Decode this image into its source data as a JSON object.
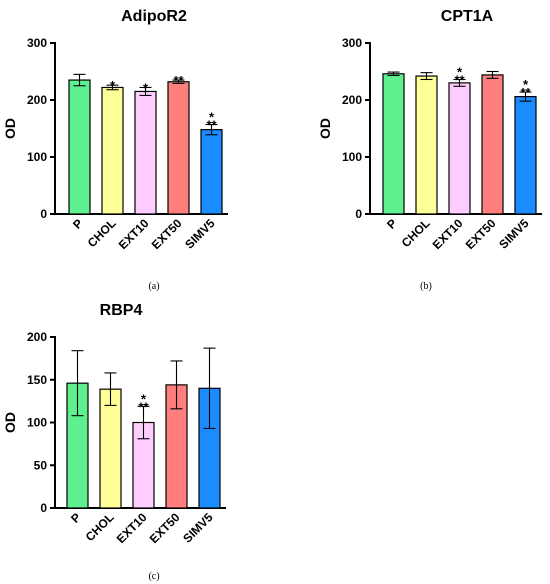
{
  "chart_data": [
    {
      "type": "bar",
      "title": "AdipoR2",
      "ylabel": "OD",
      "caption": "(a)",
      "categories": [
        "P",
        "CHOL",
        "EXT10",
        "EXT50",
        "SIMV5"
      ],
      "values": [
        235,
        222,
        215,
        232,
        148
      ],
      "errors": [
        10,
        4,
        7,
        3,
        9
      ],
      "significance": [
        "",
        "*",
        "*",
        "**",
        "*\n**"
      ],
      "colors": [
        "#5ef08e",
        "#ffff99",
        "#ffccff",
        "#ff7f7f",
        "#1a8cff"
      ],
      "ylim": [
        0,
        300
      ],
      "yticks": [
        0,
        100,
        200,
        300
      ]
    },
    {
      "type": "bar",
      "title": "CPT1A",
      "ylabel": "OD",
      "caption": "(b)",
      "categories": [
        "P",
        "CHOL",
        "EXT10",
        "EXT50",
        "SIMV5"
      ],
      "values": [
        246,
        242,
        230,
        244,
        206
      ],
      "errors": [
        3,
        6,
        6,
        6,
        8
      ],
      "significance": [
        "",
        "",
        "*\n**",
        "",
        "*\n**"
      ],
      "colors": [
        "#5ef08e",
        "#ffff99",
        "#ffccff",
        "#ff7f7f",
        "#1a8cff"
      ],
      "ylim": [
        0,
        300
      ],
      "yticks": [
        0,
        100,
        200,
        300
      ]
    },
    {
      "type": "bar",
      "title": "RBP4",
      "ylabel": "OD",
      "caption": "(c)",
      "categories": [
        "P",
        "CHOL",
        "EXT10",
        "EXT50",
        "SIMV5"
      ],
      "values": [
        146,
        139,
        100,
        144,
        140
      ],
      "errors": [
        38,
        19,
        19,
        28,
        47
      ],
      "significance": [
        "",
        "",
        "*\n**",
        "",
        ""
      ],
      "colors": [
        "#5ef08e",
        "#ffff99",
        "#ffccff",
        "#ff7f7f",
        "#1a8cff"
      ],
      "ylim": [
        0,
        200
      ],
      "yticks": [
        0,
        50,
        100,
        150,
        200
      ]
    }
  ]
}
